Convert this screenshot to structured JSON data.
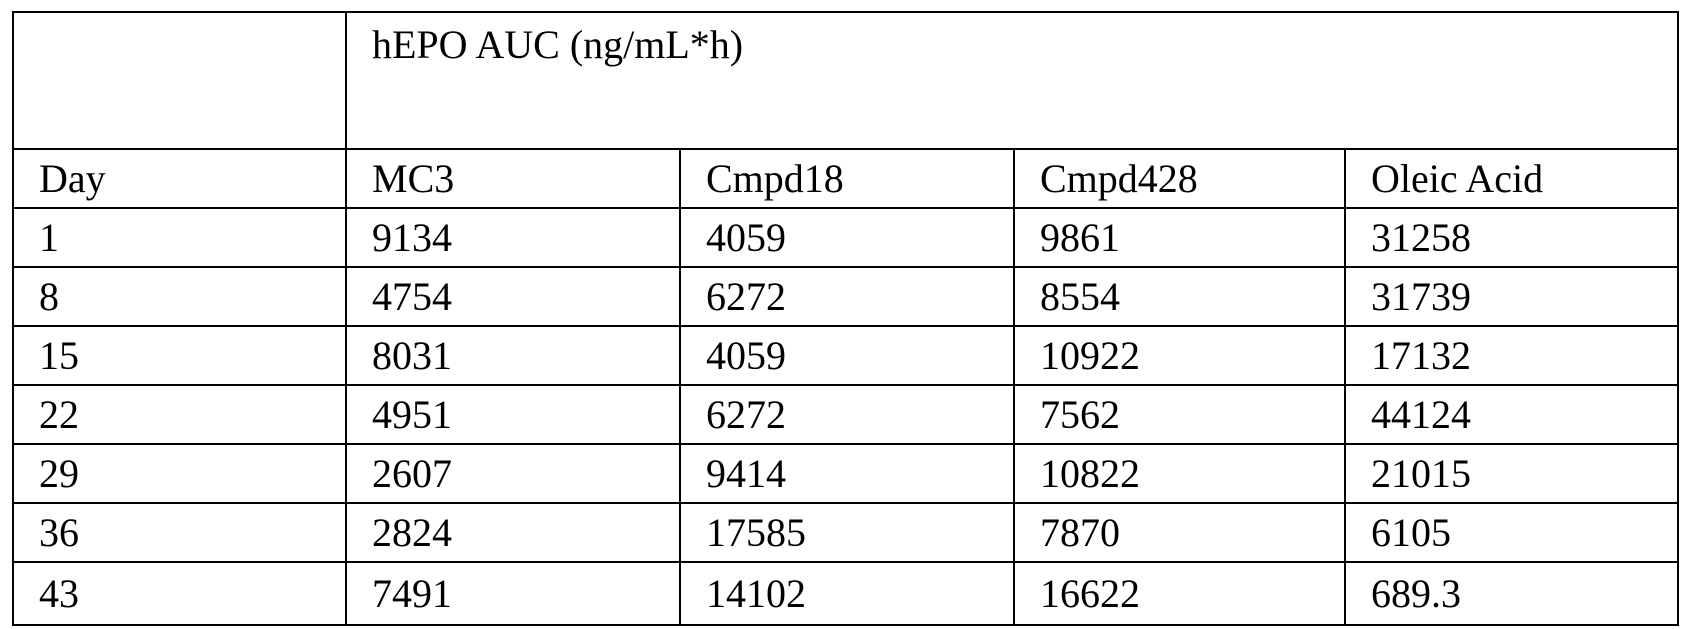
{
  "table": {
    "group_header": "hEPO AUC (ng/mL*h)",
    "columns": [
      "Day",
      "MC3",
      "Cmpd18",
      "Cmpd428",
      "Oleic Acid"
    ],
    "rows": [
      [
        "1",
        "9134",
        "4059",
        "9861",
        "31258"
      ],
      [
        "8",
        "4754",
        "6272",
        "8554",
        "31739"
      ],
      [
        "15",
        "8031",
        "4059",
        "10922",
        "17132"
      ],
      [
        "22",
        "4951",
        "6272",
        "7562",
        "44124"
      ],
      [
        "29",
        "2607",
        "9414",
        "10822",
        "21015"
      ],
      [
        "36",
        "2824",
        "17585",
        "7870",
        "6105"
      ],
      [
        "43",
        "7491",
        "14102",
        "16622",
        "689.3"
      ]
    ]
  }
}
